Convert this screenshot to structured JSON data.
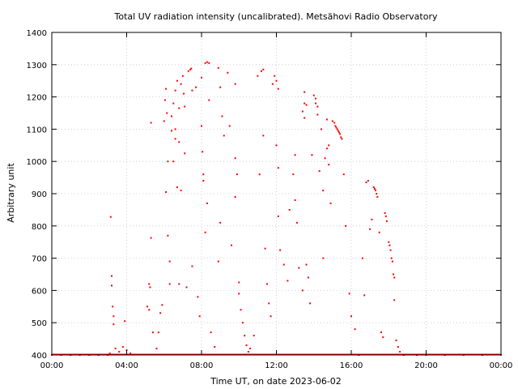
{
  "chart_data": {
    "type": "scatter",
    "title": "Total UV radiation intensity (uncalibrated). Metsähovi Radio Observatory",
    "xlabel": "Time UT, on date 2023-06-02",
    "ylabel": "Arbitrary unit",
    "x_unit": "hours UT",
    "xlim": [
      0,
      24
    ],
    "ylim": [
      400,
      1400
    ],
    "x_ticks": [
      0,
      4,
      8,
      12,
      16,
      20,
      24
    ],
    "x_tick_labels": [
      "00:00",
      "04:00",
      "08:00",
      "12:00",
      "16:00",
      "20:00",
      "00:00"
    ],
    "y_ticks": [
      400,
      500,
      600,
      700,
      800,
      900,
      1000,
      1100,
      1200,
      1300,
      1400
    ],
    "y_tick_labels": [
      "400",
      "500",
      "600",
      "700",
      "800",
      "900",
      "1000",
      "1100",
      "1200",
      "1300",
      "1400"
    ],
    "grid": true,
    "series": [
      {
        "color": "#ff0000",
        "points": [
          [
            0.0,
            400
          ],
          [
            0.5,
            400
          ],
          [
            1.0,
            400
          ],
          [
            1.5,
            400
          ],
          [
            2.0,
            400
          ],
          [
            2.5,
            400
          ],
          [
            3.0,
            400
          ],
          [
            3.1,
            405
          ],
          [
            3.15,
            828
          ],
          [
            3.2,
            645
          ],
          [
            3.2,
            615
          ],
          [
            3.25,
            550
          ],
          [
            3.3,
            520
          ],
          [
            3.3,
            495
          ],
          [
            3.4,
            420
          ],
          [
            3.6,
            410
          ],
          [
            3.8,
            425
          ],
          [
            3.9,
            505
          ],
          [
            4.0,
            415
          ],
          [
            4.2,
            405
          ],
          [
            5.1,
            550
          ],
          [
            5.2,
            540
          ],
          [
            5.2,
            620
          ],
          [
            5.25,
            610
          ],
          [
            5.3,
            763
          ],
          [
            5.3,
            1120
          ],
          [
            5.4,
            470
          ],
          [
            5.6,
            420
          ],
          [
            5.7,
            470
          ],
          [
            5.8,
            530
          ],
          [
            5.9,
            555
          ],
          [
            6.0,
            1125
          ],
          [
            6.05,
            1190
          ],
          [
            6.1,
            1225
          ],
          [
            6.1,
            905
          ],
          [
            6.15,
            1150
          ],
          [
            6.2,
            1000
          ],
          [
            6.2,
            770
          ],
          [
            6.3,
            690
          ],
          [
            6.3,
            620
          ],
          [
            6.4,
            1140
          ],
          [
            6.4,
            1095
          ],
          [
            6.5,
            1180
          ],
          [
            6.5,
            1000
          ],
          [
            6.6,
            1220
          ],
          [
            6.6,
            1100
          ],
          [
            6.6,
            1070
          ],
          [
            6.7,
            1250
          ],
          [
            6.7,
            920
          ],
          [
            6.8,
            1165
          ],
          [
            6.8,
            1060
          ],
          [
            6.8,
            620
          ],
          [
            6.9,
            1240
          ],
          [
            6.9,
            910
          ],
          [
            7.0,
            1265
          ],
          [
            7.05,
            1210
          ],
          [
            7.1,
            1170
          ],
          [
            7.1,
            1025
          ],
          [
            7.2,
            610
          ],
          [
            7.3,
            1280
          ],
          [
            7.4,
            1285
          ],
          [
            7.45,
            1288
          ],
          [
            7.5,
            1220
          ],
          [
            7.5,
            675
          ],
          [
            7.7,
            1230
          ],
          [
            7.8,
            580
          ],
          [
            7.9,
            520
          ],
          [
            8.0,
            1260
          ],
          [
            8.0,
            1110
          ],
          [
            8.05,
            1030
          ],
          [
            8.1,
            960
          ],
          [
            8.1,
            940
          ],
          [
            8.2,
            1305
          ],
          [
            8.3,
            1308
          ],
          [
            8.4,
            1305
          ],
          [
            8.4,
            1190
          ],
          [
            8.3,
            870
          ],
          [
            8.2,
            780
          ],
          [
            8.5,
            470
          ],
          [
            8.7,
            425
          ],
          [
            8.9,
            1290
          ],
          [
            9.0,
            1230
          ],
          [
            9.1,
            1140
          ],
          [
            9.2,
            1080
          ],
          [
            9.0,
            810
          ],
          [
            8.9,
            690
          ],
          [
            9.4,
            1275
          ],
          [
            9.5,
            1110
          ],
          [
            9.6,
            740
          ],
          [
            9.8,
            1240
          ],
          [
            9.8,
            1010
          ],
          [
            9.8,
            890
          ],
          [
            9.9,
            960
          ],
          [
            10.0,
            625
          ],
          [
            10.0,
            590
          ],
          [
            10.1,
            540
          ],
          [
            10.2,
            500
          ],
          [
            10.3,
            460
          ],
          [
            10.4,
            430
          ],
          [
            10.5,
            410
          ],
          [
            10.6,
            420
          ],
          [
            10.8,
            460
          ],
          [
            11.0,
            1265
          ],
          [
            11.1,
            960
          ],
          [
            11.2,
            1280
          ],
          [
            11.3,
            1285
          ],
          [
            11.3,
            1080
          ],
          [
            11.4,
            730
          ],
          [
            11.5,
            620
          ],
          [
            11.6,
            560
          ],
          [
            11.7,
            520
          ],
          [
            11.8,
            1240
          ],
          [
            11.9,
            1265
          ],
          [
            12.0,
            1250
          ],
          [
            12.0,
            1050
          ],
          [
            12.1,
            1225
          ],
          [
            12.1,
            980
          ],
          [
            12.1,
            830
          ],
          [
            12.2,
            725
          ],
          [
            12.4,
            680
          ],
          [
            12.6,
            630
          ],
          [
            12.7,
            850
          ],
          [
            12.9,
            960
          ],
          [
            13.0,
            1020
          ],
          [
            13.0,
            880
          ],
          [
            13.1,
            810
          ],
          [
            13.2,
            670
          ],
          [
            13.4,
            1155
          ],
          [
            13.4,
            600
          ],
          [
            13.5,
            1180
          ],
          [
            13.5,
            1215
          ],
          [
            13.5,
            1135
          ],
          [
            13.6,
            1175
          ],
          [
            13.6,
            680
          ],
          [
            13.7,
            640
          ],
          [
            13.8,
            560
          ],
          [
            13.9,
            1020
          ],
          [
            14.0,
            1205
          ],
          [
            14.1,
            1195
          ],
          [
            14.1,
            1180
          ],
          [
            14.2,
            1170
          ],
          [
            14.2,
            1145
          ],
          [
            14.3,
            970
          ],
          [
            14.4,
            1100
          ],
          [
            14.5,
            910
          ],
          [
            14.5,
            700
          ],
          [
            14.6,
            1010
          ],
          [
            14.7,
            1040
          ],
          [
            14.7,
            1130
          ],
          [
            14.8,
            1050
          ],
          [
            14.8,
            990
          ],
          [
            14.9,
            870
          ],
          [
            15.0,
            1125
          ],
          [
            15.1,
            1120
          ],
          [
            15.15,
            1110
          ],
          [
            15.2,
            1105
          ],
          [
            15.25,
            1100
          ],
          [
            15.3,
            1095
          ],
          [
            15.35,
            1090
          ],
          [
            15.4,
            1085
          ],
          [
            15.45,
            1075
          ],
          [
            15.5,
            1070
          ],
          [
            15.6,
            960
          ],
          [
            15.7,
            800
          ],
          [
            15.9,
            590
          ],
          [
            16.0,
            520
          ],
          [
            16.2,
            480
          ],
          [
            16.4,
            400
          ],
          [
            16.6,
            700
          ],
          [
            16.7,
            585
          ],
          [
            16.8,
            935
          ],
          [
            16.9,
            940
          ],
          [
            17.0,
            790
          ],
          [
            17.1,
            820
          ],
          [
            17.2,
            920
          ],
          [
            17.25,
            915
          ],
          [
            17.3,
            910
          ],
          [
            17.35,
            900
          ],
          [
            17.4,
            890
          ],
          [
            17.5,
            780
          ],
          [
            17.6,
            470
          ],
          [
            17.7,
            455
          ],
          [
            17.8,
            840
          ],
          [
            17.85,
            830
          ],
          [
            17.9,
            815
          ],
          [
            18.0,
            750
          ],
          [
            18.05,
            740
          ],
          [
            18.1,
            725
          ],
          [
            18.15,
            700
          ],
          [
            18.2,
            690
          ],
          [
            18.25,
            650
          ],
          [
            18.3,
            640
          ],
          [
            18.3,
            570
          ],
          [
            18.4,
            445
          ],
          [
            18.5,
            425
          ],
          [
            18.6,
            410
          ],
          [
            18.8,
            400
          ],
          [
            19.5,
            400
          ],
          [
            20.0,
            400
          ],
          [
            21.0,
            400
          ],
          [
            22.0,
            400
          ],
          [
            23.0,
            400
          ],
          [
            24.0,
            400
          ]
        ]
      }
    ]
  }
}
